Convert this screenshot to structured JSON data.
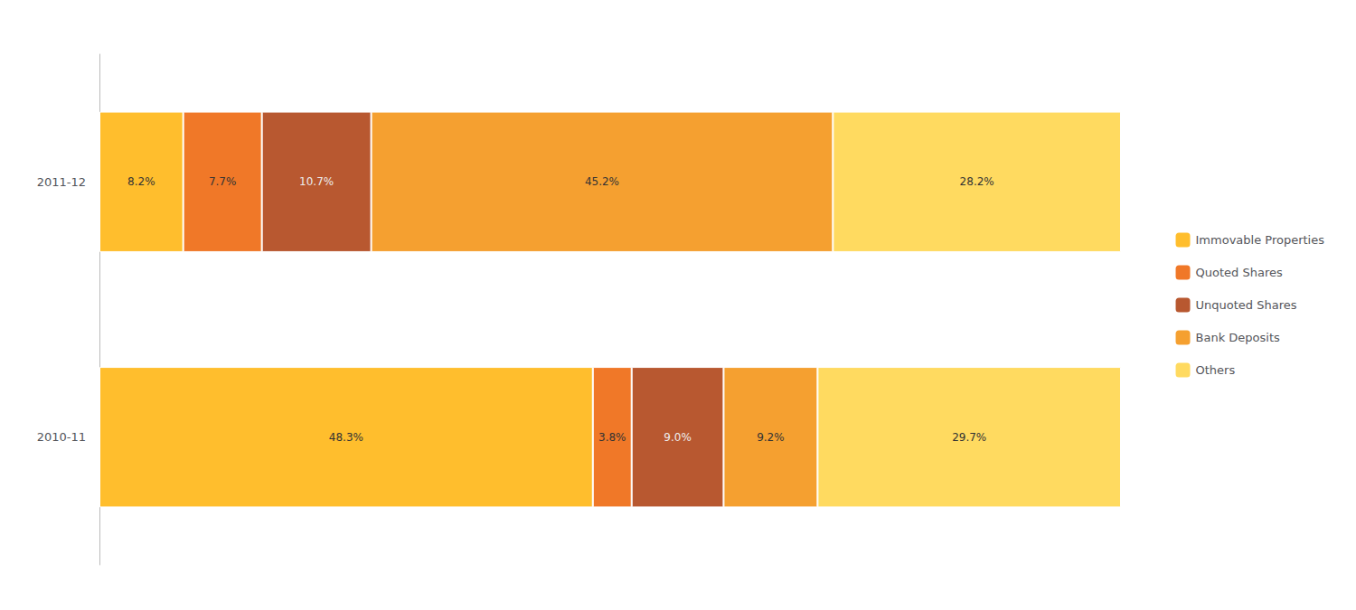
{
  "chart_data": {
    "type": "bar",
    "orientation": "horizontal",
    "stacked": true,
    "categories": [
      "2011-12",
      "2010-11"
    ],
    "series": [
      {
        "name": "Immovable Properties",
        "color": "#FFBE2D",
        "values": [
          8.2,
          48.3
        ],
        "value_labels": [
          "8.2%",
          "48.3%"
        ]
      },
      {
        "name": "Quoted Shares",
        "color": "#F07828",
        "values": [
          7.7,
          3.8
        ],
        "value_labels": [
          "7.7%",
          "3.8%"
        ]
      },
      {
        "name": "Unquoted Shares",
        "color": "#B85830",
        "values": [
          10.7,
          9.0
        ],
        "value_labels": [
          "10.7%",
          "9.0%"
        ]
      },
      {
        "name": "Bank Deposits",
        "color": "#F5A030",
        "values": [
          45.2,
          9.2
        ],
        "value_labels": [
          "45.2%",
          "9.2%"
        ]
      },
      {
        "name": "Others",
        "color": "#FFDA60",
        "values": [
          28.2,
          29.7
        ],
        "value_labels": [
          "28.2%",
          "29.7%"
        ]
      }
    ],
    "xlim": [
      0,
      100
    ],
    "data_labels": true,
    "tick_labels": "y",
    "grid": false,
    "legend": "right"
  }
}
